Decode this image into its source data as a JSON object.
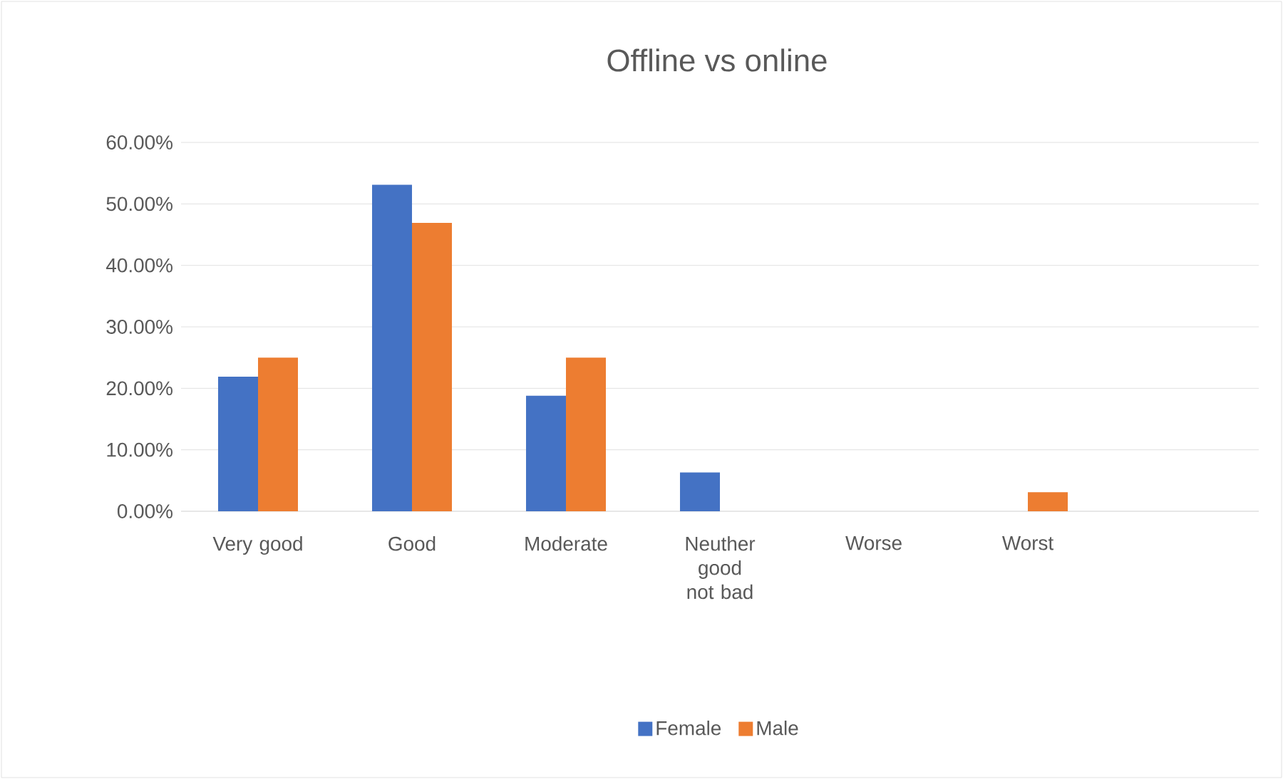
{
  "chart_data": {
    "type": "bar",
    "title": "Offline  vs online",
    "categories": [
      "Very good",
      "Good",
      "Moderate",
      "Neuther good not bad",
      "Worse",
      "Worst",
      null
    ],
    "series": [
      {
        "name": "Female",
        "color": "#4472c4",
        "values": [
          21.9,
          53.1,
          18.8,
          6.3,
          0,
          0,
          null
        ]
      },
      {
        "name": "Male",
        "color": "#ed7d31",
        "values": [
          25,
          46.9,
          25,
          0,
          0,
          3.1,
          null
        ]
      }
    ],
    "ylim": [
      0,
      60
    ],
    "yticks": [
      {
        "value": 0,
        "label": "0.00%"
      },
      {
        "value": 10,
        "label": "10.00%"
      },
      {
        "value": 20,
        "label": "20.00%"
      },
      {
        "value": 30,
        "label": "30.00%"
      },
      {
        "value": 40,
        "label": "40.00%"
      },
      {
        "value": 50,
        "label": "50.00%"
      },
      {
        "value": 60,
        "label": "60.00%"
      }
    ],
    "grid": "y",
    "legend": "bottom"
  }
}
